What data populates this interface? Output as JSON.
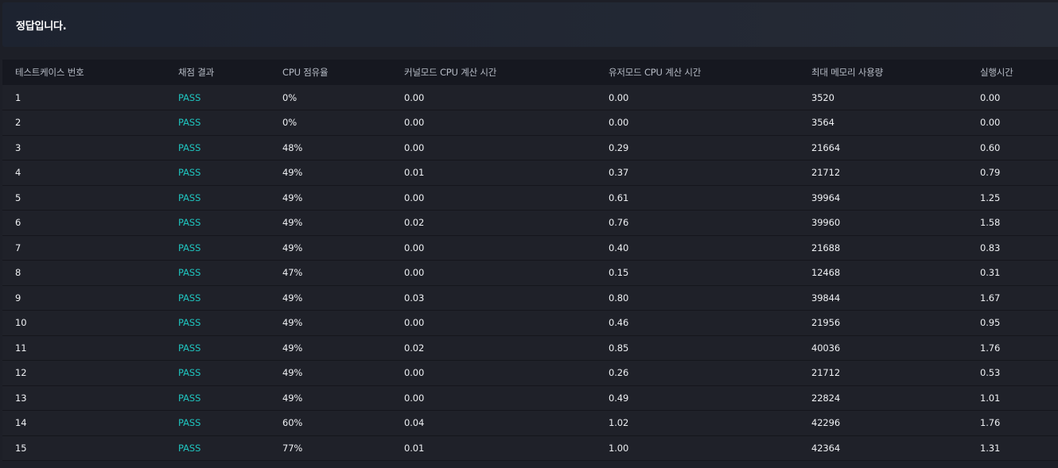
{
  "result_message": "정답입니다.",
  "table": {
    "headers": {
      "testcase": "테스트케이스 번호",
      "result": "채점 결과",
      "cpu_usage": "CPU 점유율",
      "kernel_time": "커널모드 CPU 계산 시간",
      "user_time": "유저모드 CPU 계산 시간",
      "max_memory": "최대 메모리 사용량",
      "exec_time": "실행시간"
    },
    "rows": [
      {
        "testcase": "1",
        "result": "PASS",
        "cpu_usage": "0%",
        "kernel_time": "0.00",
        "user_time": "0.00",
        "max_memory": "3520",
        "exec_time": "0.00"
      },
      {
        "testcase": "2",
        "result": "PASS",
        "cpu_usage": "0%",
        "kernel_time": "0.00",
        "user_time": "0.00",
        "max_memory": "3564",
        "exec_time": "0.00"
      },
      {
        "testcase": "3",
        "result": "PASS",
        "cpu_usage": "48%",
        "kernel_time": "0.00",
        "user_time": "0.29",
        "max_memory": "21664",
        "exec_time": "0.60"
      },
      {
        "testcase": "4",
        "result": "PASS",
        "cpu_usage": "49%",
        "kernel_time": "0.01",
        "user_time": "0.37",
        "max_memory": "21712",
        "exec_time": "0.79"
      },
      {
        "testcase": "5",
        "result": "PASS",
        "cpu_usage": "49%",
        "kernel_time": "0.00",
        "user_time": "0.61",
        "max_memory": "39964",
        "exec_time": "1.25"
      },
      {
        "testcase": "6",
        "result": "PASS",
        "cpu_usage": "49%",
        "kernel_time": "0.02",
        "user_time": "0.76",
        "max_memory": "39960",
        "exec_time": "1.58"
      },
      {
        "testcase": "7",
        "result": "PASS",
        "cpu_usage": "49%",
        "kernel_time": "0.00",
        "user_time": "0.40",
        "max_memory": "21688",
        "exec_time": "0.83"
      },
      {
        "testcase": "8",
        "result": "PASS",
        "cpu_usage": "47%",
        "kernel_time": "0.00",
        "user_time": "0.15",
        "max_memory": "12468",
        "exec_time": "0.31"
      },
      {
        "testcase": "9",
        "result": "PASS",
        "cpu_usage": "49%",
        "kernel_time": "0.03",
        "user_time": "0.80",
        "max_memory": "39844",
        "exec_time": "1.67"
      },
      {
        "testcase": "10",
        "result": "PASS",
        "cpu_usage": "49%",
        "kernel_time": "0.00",
        "user_time": "0.46",
        "max_memory": "21956",
        "exec_time": "0.95"
      },
      {
        "testcase": "11",
        "result": "PASS",
        "cpu_usage": "49%",
        "kernel_time": "0.02",
        "user_time": "0.85",
        "max_memory": "40036",
        "exec_time": "1.76"
      },
      {
        "testcase": "12",
        "result": "PASS",
        "cpu_usage": "49%",
        "kernel_time": "0.00",
        "user_time": "0.26",
        "max_memory": "21712",
        "exec_time": "0.53"
      },
      {
        "testcase": "13",
        "result": "PASS",
        "cpu_usage": "49%",
        "kernel_time": "0.00",
        "user_time": "0.49",
        "max_memory": "22824",
        "exec_time": "1.01"
      },
      {
        "testcase": "14",
        "result": "PASS",
        "cpu_usage": "60%",
        "kernel_time": "0.04",
        "user_time": "1.02",
        "max_memory": "42296",
        "exec_time": "1.76"
      },
      {
        "testcase": "15",
        "result": "PASS",
        "cpu_usage": "77%",
        "kernel_time": "0.01",
        "user_time": "1.00",
        "max_memory": "42364",
        "exec_time": "1.31"
      }
    ]
  },
  "colors": {
    "page_background": "#1d1f27",
    "header_background": "#161820",
    "pass_color": "#1fc6c0",
    "text_color": "#eef0f3"
  }
}
